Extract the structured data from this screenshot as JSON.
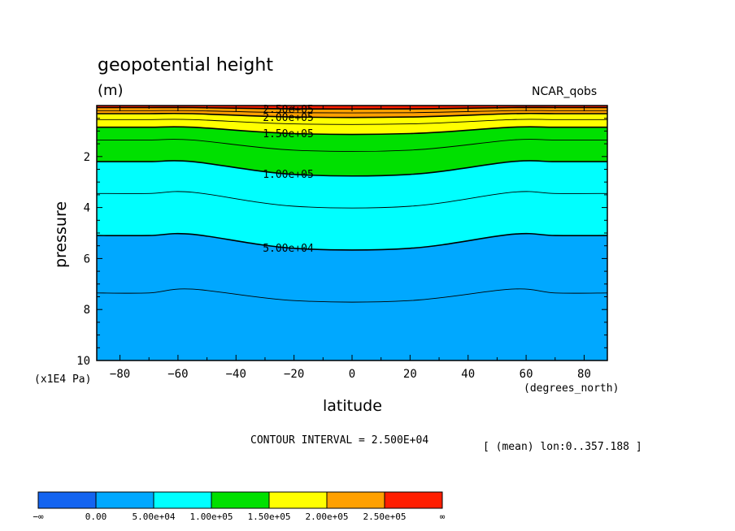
{
  "title": "geopotential height",
  "units": "(m)",
  "source": "NCAR_qobs",
  "x_axis_label": "latitude",
  "y_axis_label": "pressure",
  "y_units": "(x1E4 Pa)",
  "x_units": "(degrees_north)",
  "contour_interval": "CONTOUR INTERVAL = 2.500E+04",
  "mean_note": "[ (mean) lon:0..357.188 ]",
  "colors": {
    "band_below_0": "#1464f0",
    "band_0_50k": "#00a8ff",
    "band_50k_100k": "#00ffff",
    "band_100k_150k": "#00e000",
    "band_150k_200k": "#ffff00",
    "band_200k_250k": "#ffa000",
    "band_above_250k": "#ff1e00"
  },
  "chart_data": {
    "type": "contour",
    "title": "geopotential height",
    "xlabel": "latitude",
    "ylabel": "pressure",
    "xlim": [
      -88,
      88
    ],
    "ylim": [
      10,
      0
    ],
    "x_ticks": [
      -80,
      -60,
      -40,
      -20,
      0,
      20,
      40,
      60,
      80
    ],
    "x_tick_labels": [
      "−80",
      "−60",
      "−40",
      "−20",
      "0",
      "20",
      "40",
      "60",
      "80"
    ],
    "y_ticks": [
      2,
      4,
      6,
      8,
      10
    ],
    "y_tick_labels": [
      "2",
      "4",
      "6",
      "8",
      "10"
    ],
    "contour_interval": 25000,
    "contours": [
      {
        "level": 25000,
        "label": "",
        "major": false,
        "points": [
          [
            -88,
            7.35
          ],
          [
            -70,
            7.35
          ],
          [
            -55,
            7.2
          ],
          [
            -20,
            7.65
          ],
          [
            20,
            7.65
          ],
          [
            55,
            7.2
          ],
          [
            70,
            7.35
          ],
          [
            88,
            7.35
          ]
        ]
      },
      {
        "level": 50000,
        "label": "5.00e+04",
        "label_lat": -22,
        "major": true,
        "points": [
          [
            -88,
            5.1
          ],
          [
            -70,
            5.1
          ],
          [
            -55,
            5.05
          ],
          [
            -20,
            5.6
          ],
          [
            20,
            5.6
          ],
          [
            55,
            5.05
          ],
          [
            70,
            5.1
          ],
          [
            88,
            5.1
          ]
        ]
      },
      {
        "level": 75000,
        "label": "",
        "major": false,
        "points": [
          [
            -88,
            3.45
          ],
          [
            -70,
            3.45
          ],
          [
            -55,
            3.4
          ],
          [
            -20,
            3.95
          ],
          [
            20,
            3.95
          ],
          [
            55,
            3.4
          ],
          [
            70,
            3.45
          ],
          [
            88,
            3.45
          ]
        ]
      },
      {
        "level": 100000,
        "label": "1.00e+05",
        "label_lat": -22,
        "major": true,
        "points": [
          [
            -88,
            2.2
          ],
          [
            -70,
            2.2
          ],
          [
            -55,
            2.2
          ],
          [
            -20,
            2.7
          ],
          [
            20,
            2.7
          ],
          [
            55,
            2.2
          ],
          [
            70,
            2.2
          ],
          [
            88,
            2.2
          ]
        ]
      },
      {
        "level": 125000,
        "label": "",
        "major": false,
        "points": [
          [
            -88,
            1.35
          ],
          [
            -70,
            1.35
          ],
          [
            -55,
            1.35
          ],
          [
            -20,
            1.75
          ],
          [
            20,
            1.75
          ],
          [
            55,
            1.35
          ],
          [
            70,
            1.35
          ],
          [
            88,
            1.35
          ]
        ]
      },
      {
        "level": 150000,
        "label": "1.50e+05",
        "label_lat": -22,
        "major": true,
        "points": [
          [
            -88,
            0.85
          ],
          [
            -70,
            0.85
          ],
          [
            -55,
            0.85
          ],
          [
            -20,
            1.1
          ],
          [
            20,
            1.1
          ],
          [
            55,
            0.85
          ],
          [
            70,
            0.85
          ],
          [
            88,
            0.85
          ]
        ]
      },
      {
        "level": 175000,
        "label": "",
        "major": false,
        "points": [
          [
            -88,
            0.55
          ],
          [
            -70,
            0.55
          ],
          [
            -55,
            0.55
          ],
          [
            -20,
            0.72
          ],
          [
            20,
            0.72
          ],
          [
            55,
            0.55
          ],
          [
            70,
            0.55
          ],
          [
            88,
            0.55
          ]
        ]
      },
      {
        "level": 200000,
        "label": "2.00e+05",
        "label_lat": -22,
        "major": true,
        "points": [
          [
            -88,
            0.32
          ],
          [
            -70,
            0.32
          ],
          [
            -55,
            0.32
          ],
          [
            -20,
            0.45
          ],
          [
            20,
            0.45
          ],
          [
            55,
            0.32
          ],
          [
            70,
            0.32
          ],
          [
            88,
            0.32
          ]
        ]
      },
      {
        "level": 225000,
        "label": "",
        "major": false,
        "points": [
          [
            -88,
            0.2
          ],
          [
            -70,
            0.2
          ],
          [
            -55,
            0.2
          ],
          [
            -20,
            0.28
          ],
          [
            20,
            0.28
          ],
          [
            55,
            0.2
          ],
          [
            70,
            0.2
          ],
          [
            88,
            0.2
          ]
        ]
      },
      {
        "level": 250000,
        "label": "2.50e+05",
        "label_lat": -22,
        "major": true,
        "points": [
          [
            -88,
            0.08
          ],
          [
            -70,
            0.08
          ],
          [
            -55,
            0.08
          ],
          [
            -20,
            0.13
          ],
          [
            20,
            0.13
          ],
          [
            55,
            0.08
          ],
          [
            70,
            0.08
          ],
          [
            88,
            0.08
          ]
        ]
      }
    ],
    "colorbar": {
      "labels": [
        "−∞",
        "0.00",
        "5.00e+04",
        "1.00e+05",
        "1.50e+05",
        "2.00e+05",
        "2.50e+05",
        "∞"
      ],
      "colors": [
        "#1464f0",
        "#00a8ff",
        "#00ffff",
        "#00e000",
        "#ffff00",
        "#ffa000",
        "#ff1e00"
      ]
    }
  }
}
